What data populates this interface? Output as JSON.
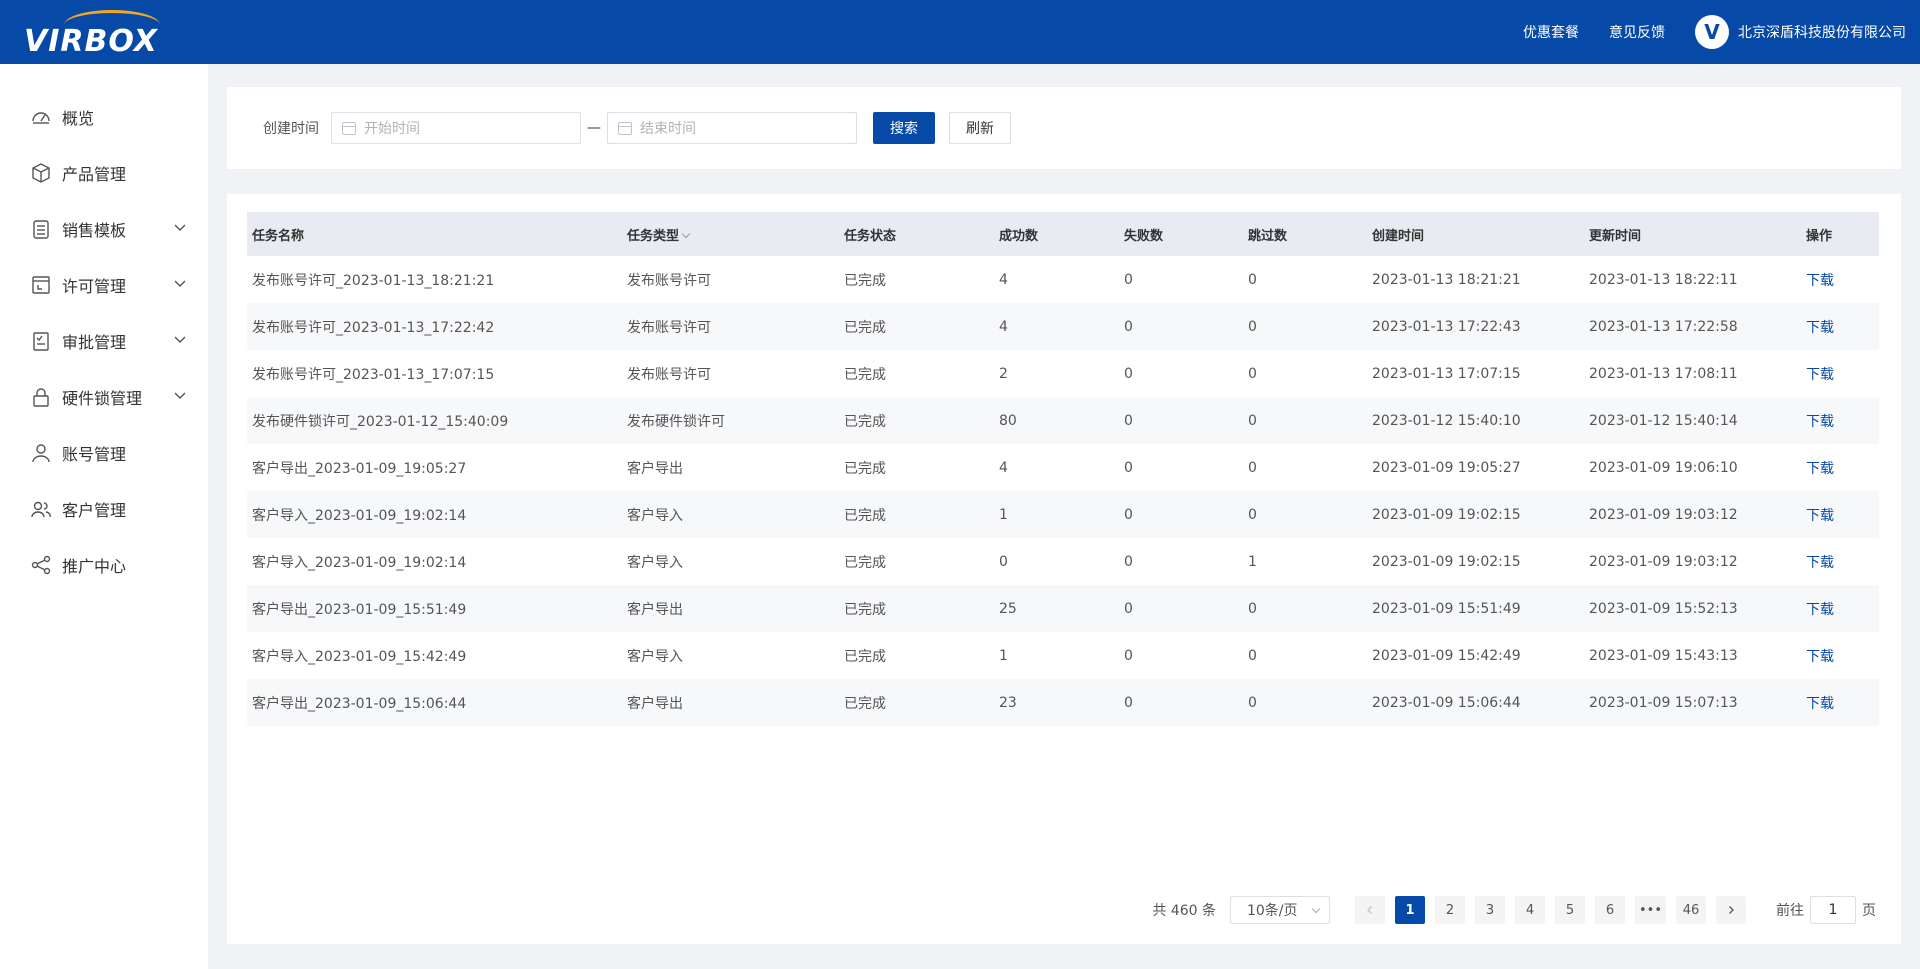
{
  "header": {
    "brand": "VIRBOX",
    "links": [
      "优惠套餐",
      "意见反馈"
    ],
    "company": "北京深盾科技股份有限公司",
    "company_logo_letter": "V"
  },
  "sidebar": {
    "items": [
      {
        "label": "概览",
        "icon": "dashboard-icon",
        "expandable": false
      },
      {
        "label": "产品管理",
        "icon": "cube-icon",
        "expandable": false
      },
      {
        "label": "销售模板",
        "icon": "template-icon",
        "expandable": true
      },
      {
        "label": "许可管理",
        "icon": "license-icon",
        "expandable": true
      },
      {
        "label": "审批管理",
        "icon": "approval-icon",
        "expandable": true
      },
      {
        "label": "硬件锁管理",
        "icon": "lock-icon",
        "expandable": true
      },
      {
        "label": "账号管理",
        "icon": "user-icon",
        "expandable": false
      },
      {
        "label": "客户管理",
        "icon": "customers-icon",
        "expandable": false
      },
      {
        "label": "推广中心",
        "icon": "share-icon",
        "expandable": false
      }
    ]
  },
  "search": {
    "label": "创建时间",
    "start_placeholder": "开始时间",
    "separator": "—",
    "end_placeholder": "结束时间",
    "search_button": "搜索",
    "refresh_button": "刷新"
  },
  "table": {
    "columns": [
      "任务名称",
      "任务类型",
      "任务状态",
      "成功数",
      "失败数",
      "跳过数",
      "创建时间",
      "更新时间",
      "操作"
    ],
    "rows": [
      [
        "发布账号许可_2023-01-13_18:21:21",
        "发布账号许可",
        "已完成",
        "4",
        "0",
        "0",
        "2023-01-13 18:21:21",
        "2023-01-13 18:22:11",
        "下载"
      ],
      [
        "发布账号许可_2023-01-13_17:22:42",
        "发布账号许可",
        "已完成",
        "4",
        "0",
        "0",
        "2023-01-13 17:22:43",
        "2023-01-13 17:22:58",
        "下载"
      ],
      [
        "发布账号许可_2023-01-13_17:07:15",
        "发布账号许可",
        "已完成",
        "2",
        "0",
        "0",
        "2023-01-13 17:07:15",
        "2023-01-13 17:08:11",
        "下载"
      ],
      [
        "发布硬件锁许可_2023-01-12_15:40:09",
        "发布硬件锁许可",
        "已完成",
        "80",
        "0",
        "0",
        "2023-01-12 15:40:10",
        "2023-01-12 15:40:14",
        "下载"
      ],
      [
        "客户导出_2023-01-09_19:05:27",
        "客户导出",
        "已完成",
        "4",
        "0",
        "0",
        "2023-01-09 19:05:27",
        "2023-01-09 19:06:10",
        "下载"
      ],
      [
        "客户导入_2023-01-09_19:02:14",
        "客户导入",
        "已完成",
        "1",
        "0",
        "0",
        "2023-01-09 19:02:15",
        "2023-01-09 19:03:12",
        "下载"
      ],
      [
        "客户导入_2023-01-09_19:02:14",
        "客户导入",
        "已完成",
        "0",
        "0",
        "1",
        "2023-01-09 19:02:15",
        "2023-01-09 19:03:12",
        "下载"
      ],
      [
        "客户导出_2023-01-09_15:51:49",
        "客户导出",
        "已完成",
        "25",
        "0",
        "0",
        "2023-01-09 15:51:49",
        "2023-01-09 15:52:13",
        "下载"
      ],
      [
        "客户导入_2023-01-09_15:42:49",
        "客户导入",
        "已完成",
        "1",
        "0",
        "0",
        "2023-01-09 15:42:49",
        "2023-01-09 15:43:13",
        "下载"
      ],
      [
        "客户导出_2023-01-09_15:06:44",
        "客户导出",
        "已完成",
        "23",
        "0",
        "0",
        "2023-01-09 15:06:44",
        "2023-01-09 15:07:13",
        "下载"
      ]
    ]
  },
  "pagination": {
    "total": "共 460 条",
    "page_size": "10条/页",
    "pages": [
      "1",
      "2",
      "3",
      "4",
      "5",
      "6",
      "•••",
      "46"
    ],
    "current": "1",
    "goto_prefix": "前往",
    "goto_value": "1",
    "goto_suffix": "页"
  },
  "colors": {
    "brand": "#0649a6",
    "accent": "#f5a623",
    "header_bg": "#0649a6",
    "page_bg": "#f0f2f5"
  }
}
